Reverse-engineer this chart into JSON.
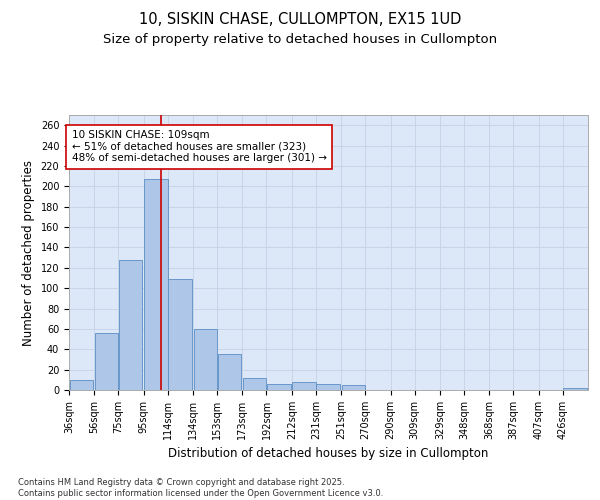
{
  "title_line1": "10, SISKIN CHASE, CULLOMPTON, EX15 1UD",
  "title_line2": "Size of property relative to detached houses in Cullompton",
  "xlabel": "Distribution of detached houses by size in Cullompton",
  "ylabel": "Number of detached properties",
  "bins": [
    36,
    56,
    75,
    95,
    114,
    134,
    153,
    173,
    192,
    212,
    231,
    251,
    270,
    290,
    309,
    329,
    348,
    368,
    387,
    407,
    426
  ],
  "bin_labels": [
    "36sqm",
    "56sqm",
    "75sqm",
    "95sqm",
    "114sqm",
    "134sqm",
    "153sqm",
    "173sqm",
    "192sqm",
    "212sqm",
    "231sqm",
    "251sqm",
    "270sqm",
    "290sqm",
    "309sqm",
    "329sqm",
    "348sqm",
    "368sqm",
    "387sqm",
    "407sqm",
    "426sqm"
  ],
  "values": [
    10,
    56,
    128,
    207,
    109,
    60,
    35,
    12,
    6,
    8,
    6,
    5,
    0,
    0,
    0,
    0,
    0,
    0,
    0,
    0,
    2
  ],
  "bar_color": "#aec6e8",
  "bar_edge_color": "#5b8ec4",
  "grid_color": "#c8d4e8",
  "background_color": "#dce8f8",
  "vline_x": 109,
  "vline_color": "#cc0000",
  "annotation_text": "10 SISKIN CHASE: 109sqm\n← 51% of detached houses are smaller (323)\n48% of semi-detached houses are larger (301) →",
  "annotation_box_color": "#ffffff",
  "annotation_edge_color": "#cc0000",
  "ylim": [
    0,
    270
  ],
  "yticks": [
    0,
    20,
    40,
    60,
    80,
    100,
    120,
    140,
    160,
    180,
    200,
    220,
    240,
    260
  ],
  "footnote": "Contains HM Land Registry data © Crown copyright and database right 2025.\nContains public sector information licensed under the Open Government Licence v3.0.",
  "title_fontsize": 10.5,
  "subtitle_fontsize": 9.5,
  "axis_label_fontsize": 8.5,
  "tick_fontsize": 7,
  "annotation_fontsize": 7.5
}
